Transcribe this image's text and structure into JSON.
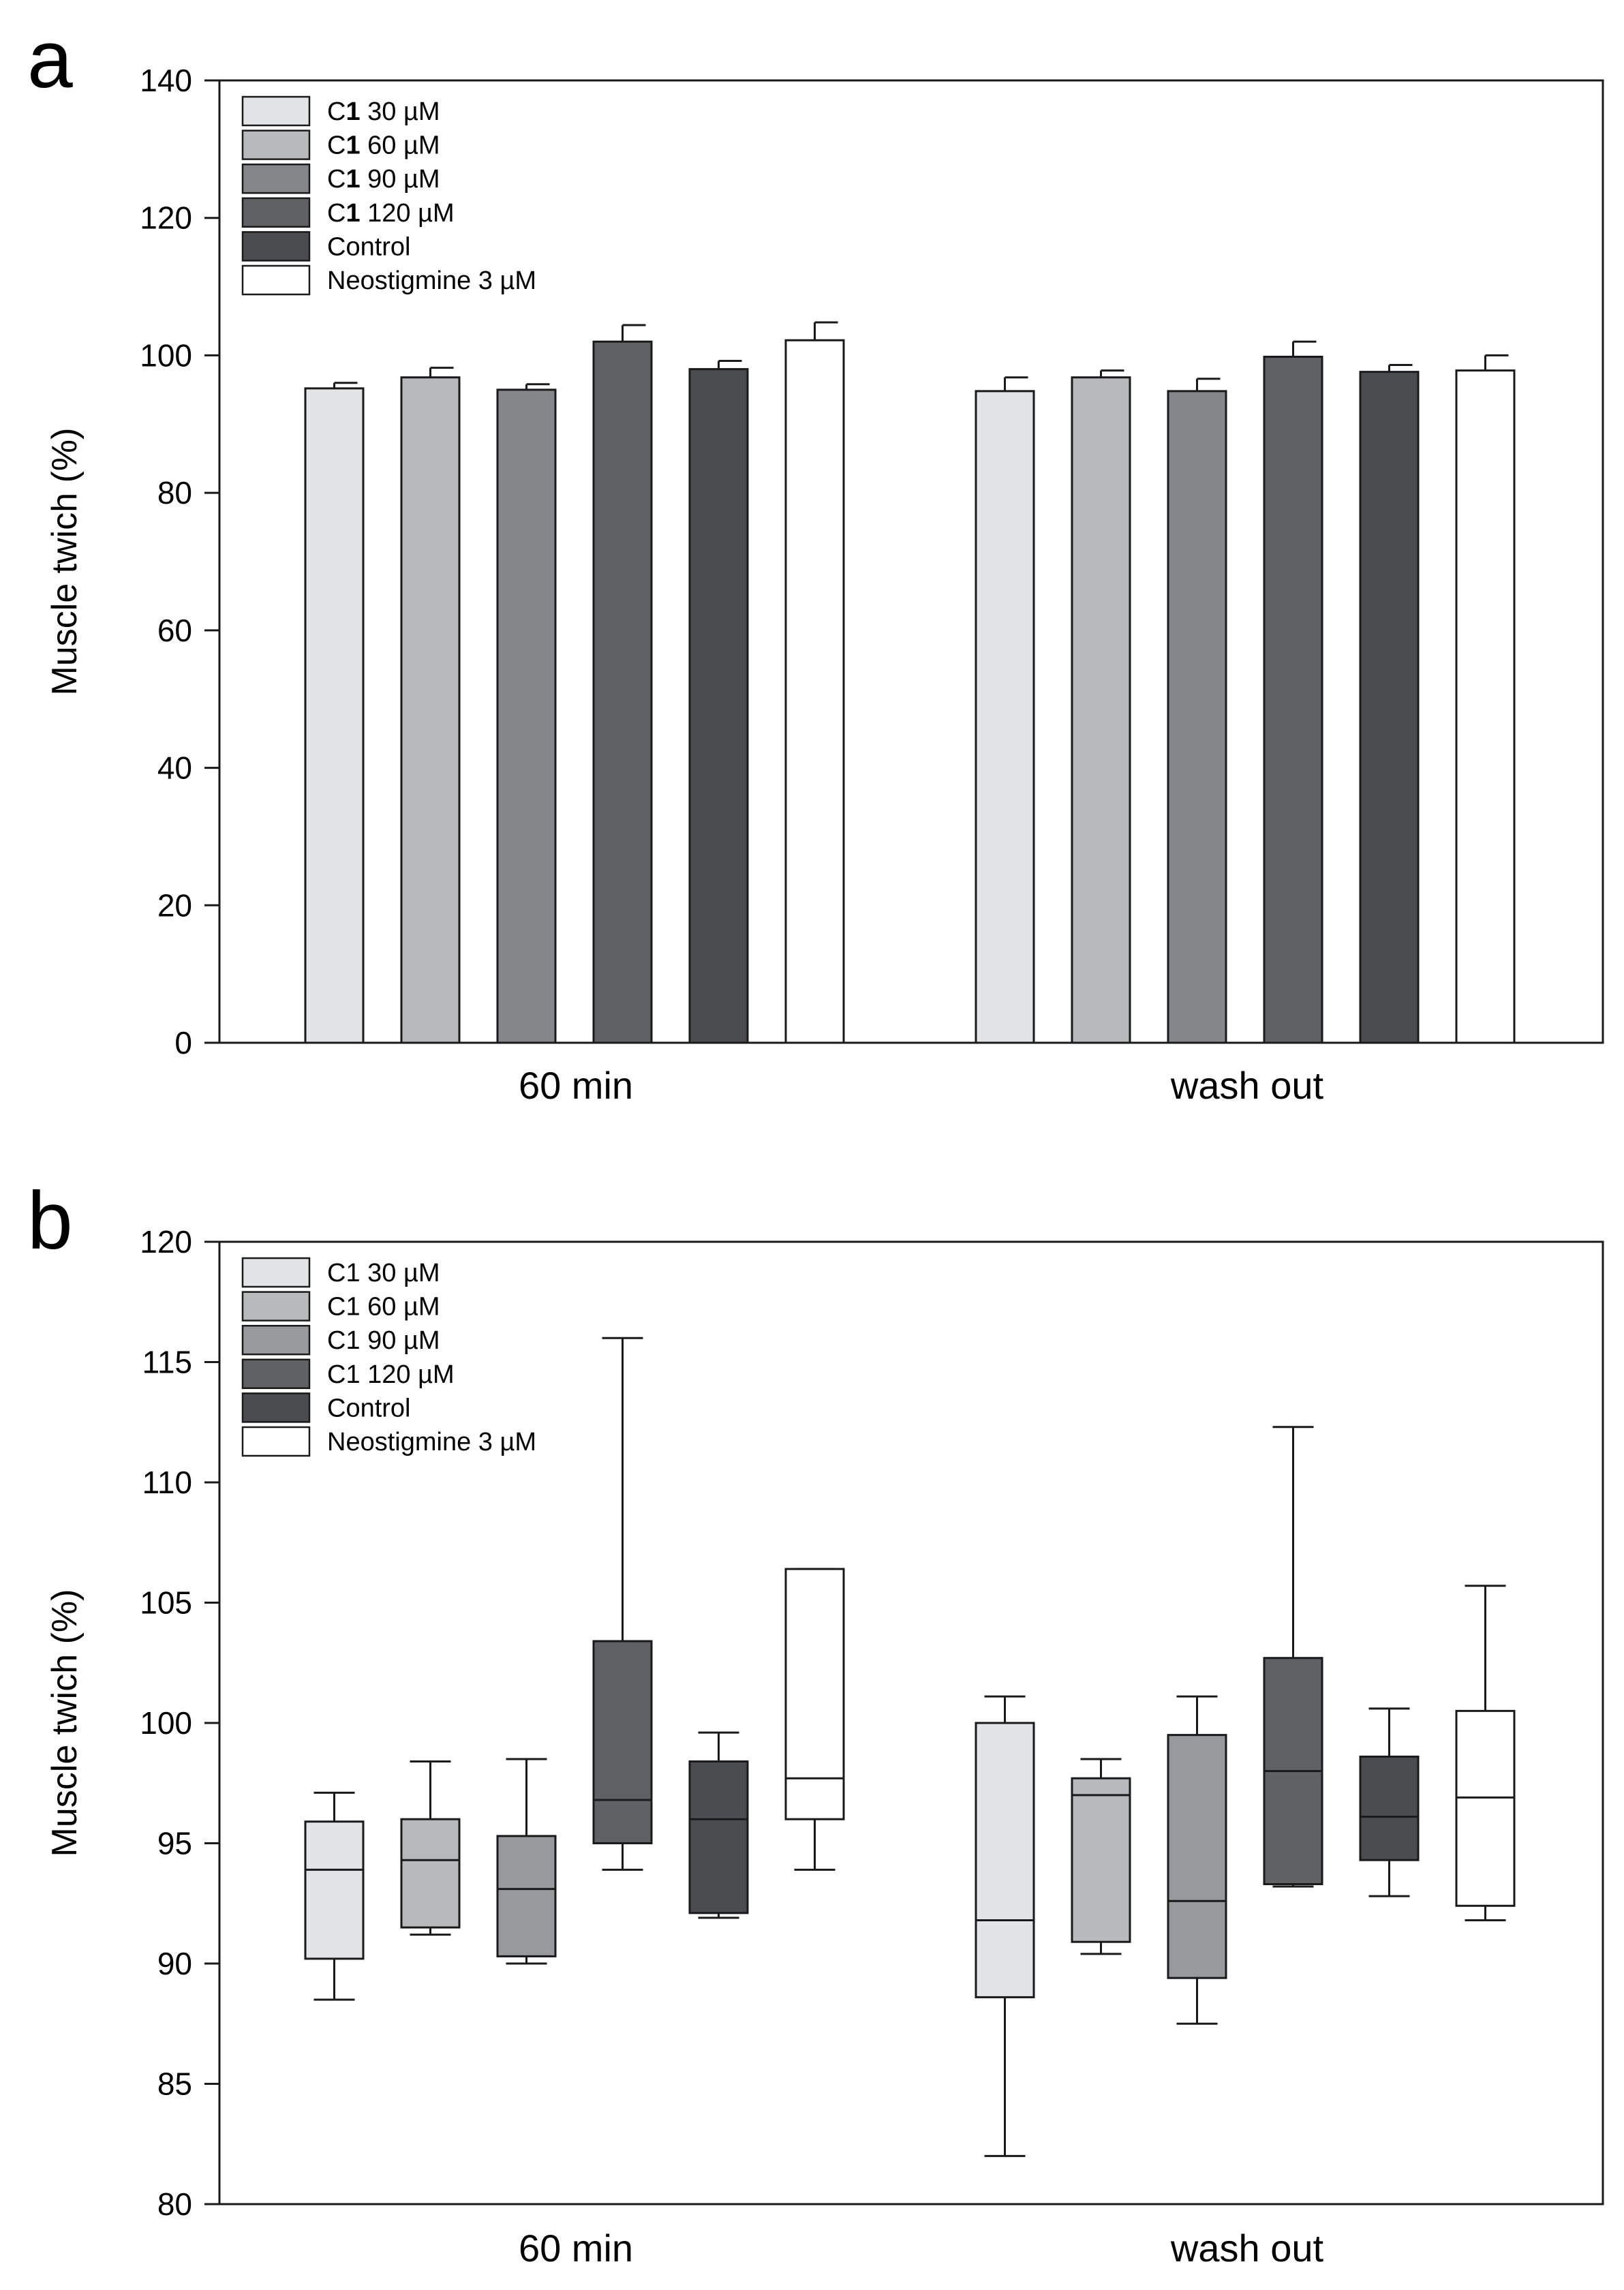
{
  "figure": {
    "panels": [
      {
        "letter": "a",
        "chart_data": {
          "type": "bar",
          "ylabel": "Muscle twich (%)",
          "xlabel": "",
          "ylim": [
            0,
            140
          ],
          "yticks": [
            0,
            20,
            40,
            60,
            80,
            100,
            120,
            140
          ],
          "categories": [
            "60 min",
            "wash out"
          ],
          "legend_position": "top-left",
          "series": [
            {
              "name": "C1 30 µM",
              "legend_prefix": "C",
              "legend_bold": "1",
              "legend_suffix": " 30 µM",
              "color": "#e2e3e4",
              "values": [
                95.2,
                94.8
              ],
              "errors": [
                0.8,
                2.0
              ]
            },
            {
              "name": "C1 60 µM",
              "legend_prefix": "C",
              "legend_bold": "1",
              "legend_suffix": " 60 µM",
              "color": "#b8b9bb",
              "values": [
                96.8,
                96.8
              ],
              "errors": [
                1.4,
                1.0
              ]
            },
            {
              "name": "C1 90 µM",
              "legend_prefix": "C",
              "legend_bold": "1",
              "legend_suffix": " 90 µM",
              "color": "#848689",
              "values": [
                95.0,
                94.8
              ],
              "errors": [
                0.8,
                1.8
              ]
            },
            {
              "name": "C1 120 µM",
              "legend_prefix": "C",
              "legend_bold": "1",
              "legend_suffix": " 120 µM",
              "color": "#5f6164",
              "values": [
                102.0,
                99.8
              ],
              "errors": [
                2.4,
                2.2
              ]
            },
            {
              "name": "Control",
              "legend_prefix": "Control",
              "legend_bold": "",
              "legend_suffix": "",
              "color": "#4b4c50",
              "values": [
                98.0,
                97.6
              ],
              "errors": [
                1.2,
                1.0
              ]
            },
            {
              "name": "Neostigmine 3 µM",
              "legend_prefix": "Neostigmine 3 µM",
              "legend_bold": "",
              "legend_suffix": "",
              "color": "#ffffff",
              "values": [
                102.2,
                97.8
              ],
              "errors": [
                2.6,
                2.2
              ]
            }
          ]
        }
      },
      {
        "letter": "b",
        "chart_data": {
          "type": "box",
          "ylabel": "Muscle twich (%)",
          "xlabel": "",
          "ylim": [
            80,
            120
          ],
          "yticks": [
            80,
            85,
            90,
            95,
            100,
            105,
            110,
            115,
            120
          ],
          "categories": [
            "60 min",
            "wash out"
          ],
          "legend_position": "top-left",
          "series": [
            {
              "name": "C1 30 µM",
              "legend_prefix": "C1 30 µM",
              "legend_bold": "",
              "legend_suffix": "",
              "color": "#e2e3e4",
              "boxes": [
                {
                  "min": 88.5,
                  "q1": 90.2,
                  "median": 93.9,
                  "q3": 95.9,
                  "max": 97.1
                },
                {
                  "min": 82.0,
                  "q1": 88.6,
                  "median": 91.8,
                  "q3": 100.0,
                  "max": 101.1
                }
              ]
            },
            {
              "name": "C1 60 µM",
              "legend_prefix": "C1 60 µM",
              "legend_bold": "",
              "legend_suffix": "",
              "color": "#b8b9bb",
              "boxes": [
                {
                  "min": 91.2,
                  "q1": 91.5,
                  "median": 94.3,
                  "q3": 96.0,
                  "max": 98.4
                },
                {
                  "min": 90.4,
                  "q1": 90.9,
                  "median": 97.0,
                  "q3": 97.7,
                  "max": 98.5
                }
              ]
            },
            {
              "name": "C1 90 µM",
              "legend_prefix": "C1 90 µM",
              "legend_bold": "",
              "legend_suffix": "",
              "color": "#97999c",
              "boxes": [
                {
                  "min": 90.0,
                  "q1": 90.3,
                  "median": 93.1,
                  "q3": 95.3,
                  "max": 98.5
                },
                {
                  "min": 87.5,
                  "q1": 89.4,
                  "median": 92.6,
                  "q3": 99.5,
                  "max": 101.1
                }
              ]
            },
            {
              "name": "C1 120 µM",
              "legend_prefix": "C1 120 µM",
              "legend_bold": "",
              "legend_suffix": "",
              "color": "#5f6164",
              "boxes": [
                {
                  "min": 93.9,
                  "q1": 95.0,
                  "median": 96.8,
                  "q3": 103.4,
                  "max": 116.0
                },
                {
                  "min": 93.2,
                  "q1": 93.3,
                  "median": 98.0,
                  "q3": 102.7,
                  "max": 112.3
                }
              ]
            },
            {
              "name": "Control",
              "legend_prefix": "Control",
              "legend_bold": "",
              "legend_suffix": "",
              "color": "#4b4c50",
              "boxes": [
                {
                  "min": 91.9,
                  "q1": 92.1,
                  "median": 96.0,
                  "q3": 98.4,
                  "max": 99.6
                },
                {
                  "min": 92.8,
                  "q1": 94.3,
                  "median": 96.1,
                  "q3": 98.6,
                  "max": 100.6
                }
              ]
            },
            {
              "name": "Neostigmine 3 µM",
              "legend_prefix": "Neostigmine 3 µM",
              "legend_bold": "",
              "legend_suffix": "",
              "color": "#ffffff",
              "boxes": [
                {
                  "min": 93.9,
                  "q1": 96.0,
                  "median": 97.7,
                  "q3": 106.4,
                  "max": 106.4
                },
                {
                  "min": 91.8,
                  "q1": 92.4,
                  "median": 96.9,
                  "q3": 100.5,
                  "max": 105.7
                }
              ]
            }
          ]
        }
      }
    ]
  }
}
